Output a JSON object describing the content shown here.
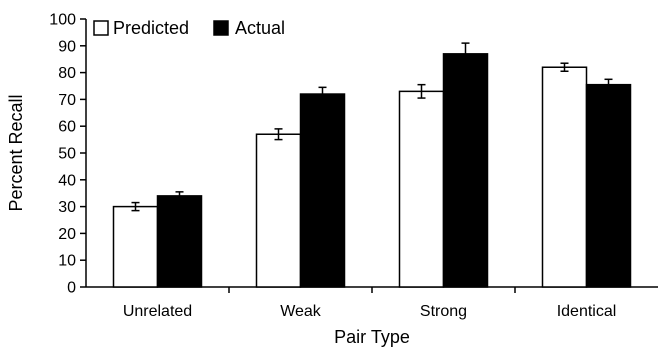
{
  "chart_data": {
    "type": "bar",
    "categories": [
      "Unrelated",
      "Weak",
      "Strong",
      "Identical"
    ],
    "series": [
      {
        "name": "Predicted",
        "values": [
          30,
          57,
          73,
          82
        ],
        "errors": [
          1.5,
          2,
          2.5,
          1.5
        ],
        "color": "#ffffff"
      },
      {
        "name": "Actual",
        "values": [
          34,
          72,
          87,
          75.5
        ],
        "errors": [
          1.5,
          2.5,
          4,
          2
        ],
        "color": "#000000"
      }
    ],
    "xlabel": "Pair Type",
    "ylabel": "Percent Recall",
    "ylim": [
      0,
      100
    ],
    "yticks": [
      0,
      10,
      20,
      30,
      40,
      50,
      60,
      70,
      80,
      90,
      100
    ],
    "legend_position": "top-left",
    "grid": false
  }
}
